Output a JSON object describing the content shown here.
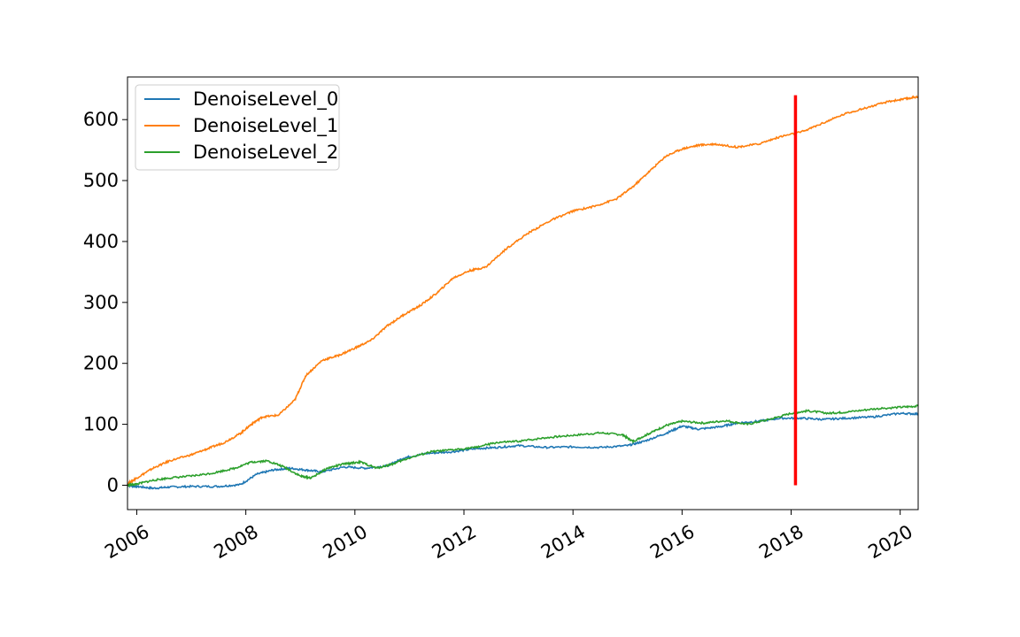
{
  "chart_data": {
    "type": "line",
    "title": "",
    "xlabel": "",
    "ylabel": "",
    "xlim": [
      2005.83,
      2020.33
    ],
    "ylim": [
      -40,
      670
    ],
    "x_ticks": [
      2006,
      2008,
      2010,
      2012,
      2014,
      2016,
      2018,
      2020
    ],
    "x_tick_labels": [
      "2006",
      "2008",
      "2010",
      "2012",
      "2014",
      "2016",
      "2018",
      "2020"
    ],
    "y_ticks": [
      0,
      100,
      200,
      300,
      400,
      500,
      600
    ],
    "y_tick_labels": [
      "0",
      "100",
      "200",
      "300",
      "400",
      "500",
      "600"
    ],
    "grid": false,
    "legend_position": "top-left",
    "series": [
      {
        "name": "DenoiseLevel_0",
        "color": "#1f77b4",
        "x": [
          2005.83,
          2006.0,
          2006.3,
          2006.6,
          2007.0,
          2007.5,
          2007.9,
          2008.2,
          2008.5,
          2008.8,
          2009.1,
          2009.4,
          2009.8,
          2010.2,
          2010.6,
          2010.9,
          2011.3,
          2011.8,
          2012.2,
          2012.6,
          2013.0,
          2013.5,
          2014.0,
          2014.5,
          2015.0,
          2015.3,
          2015.7,
          2016.0,
          2016.3,
          2016.7,
          2017.0,
          2017.4,
          2017.8,
          2018.2,
          2018.6,
          2019.0,
          2019.5,
          2020.0,
          2020.33
        ],
        "y": [
          0,
          -2,
          -5,
          -3,
          -2,
          -2,
          1,
          18,
          25,
          28,
          25,
          22,
          30,
          28,
          32,
          45,
          52,
          55,
          60,
          62,
          65,
          62,
          63,
          62,
          65,
          72,
          85,
          97,
          92,
          96,
          102,
          105,
          110,
          110,
          108,
          110,
          112,
          118,
          117
        ]
      },
      {
        "name": "DenoiseLevel_1",
        "color": "#ff7f0e",
        "x": [
          2005.83,
          2006.0,
          2006.3,
          2006.6,
          2007.0,
          2007.3,
          2007.6,
          2007.9,
          2008.1,
          2008.3,
          2008.6,
          2008.9,
          2009.1,
          2009.4,
          2009.7,
          2010.0,
          2010.3,
          2010.6,
          2010.9,
          2011.2,
          2011.5,
          2011.8,
          2012.1,
          2012.4,
          2012.8,
          2013.2,
          2013.6,
          2014.0,
          2014.4,
          2014.8,
          2015.1,
          2015.4,
          2015.7,
          2016.0,
          2016.3,
          2016.6,
          2017.0,
          2017.4,
          2017.8,
          2018.2,
          2018.6,
          2019.0,
          2019.4,
          2019.8,
          2020.1,
          2020.33
        ],
        "y": [
          2,
          12,
          28,
          40,
          50,
          60,
          70,
          85,
          100,
          112,
          115,
          140,
          180,
          205,
          213,
          225,
          238,
          262,
          280,
          295,
          315,
          340,
          352,
          358,
          390,
          415,
          435,
          450,
          458,
          470,
          490,
          515,
          540,
          552,
          558,
          560,
          555,
          560,
          572,
          580,
          595,
          610,
          620,
          630,
          634,
          638
        ]
      },
      {
        "name": "DenoiseLevel_2",
        "color": "#2ca02c",
        "x": [
          2005.83,
          2006.0,
          2006.3,
          2006.6,
          2007.0,
          2007.4,
          2007.8,
          2008.1,
          2008.4,
          2008.7,
          2009.0,
          2009.2,
          2009.5,
          2009.8,
          2010.1,
          2010.4,
          2010.7,
          2011.0,
          2011.4,
          2011.8,
          2012.2,
          2012.6,
          2013.0,
          2013.5,
          2014.0,
          2014.5,
          2014.9,
          2015.1,
          2015.4,
          2015.7,
          2016.0,
          2016.4,
          2016.8,
          2017.2,
          2017.6,
          2018.0,
          2018.3,
          2018.7,
          2019.0,
          2019.5,
          2020.0,
          2020.33
        ],
        "y": [
          0,
          2,
          8,
          12,
          15,
          20,
          28,
          38,
          40,
          30,
          15,
          12,
          28,
          35,
          38,
          28,
          35,
          45,
          55,
          58,
          62,
          70,
          72,
          78,
          82,
          86,
          83,
          72,
          85,
          98,
          105,
          102,
          106,
          100,
          108,
          118,
          122,
          118,
          120,
          125,
          128,
          130
        ]
      }
    ],
    "annotations": [
      {
        "type": "vertical-line",
        "x": 2018.08,
        "y_from": 0,
        "y_to": 640,
        "color": "#ff0000"
      }
    ]
  }
}
